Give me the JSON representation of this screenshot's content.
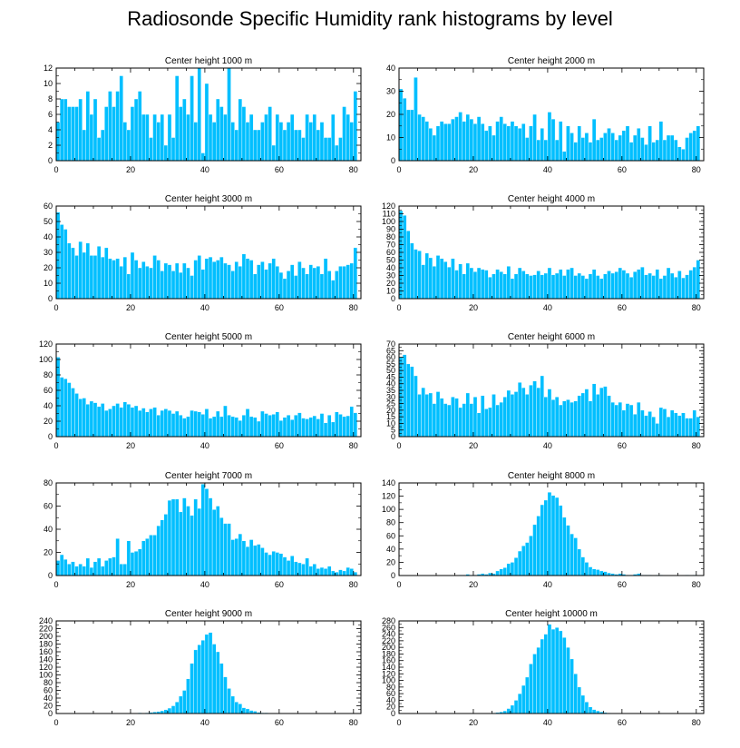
{
  "figure_title": "Radiosonde Specific Humidity rank histograms by level",
  "colors": {
    "bar": "#00bfff",
    "bar_edge": "#ffffff",
    "axis": "#000000"
  },
  "chart_data": [
    {
      "type": "bar",
      "title": "Center height 1000 m",
      "xlim": [
        0,
        82
      ],
      "ylim": [
        0,
        12
      ],
      "xticks": [
        0,
        20,
        40,
        60,
        80
      ],
      "yticks": [
        0,
        2,
        4,
        6,
        8,
        10,
        12
      ],
      "values": [
        5,
        8,
        8,
        7,
        7,
        7,
        8,
        4,
        9,
        6,
        8,
        3,
        4,
        7,
        9,
        7,
        9,
        11,
        5,
        4,
        7,
        8,
        9,
        6,
        6,
        3,
        6,
        5,
        6,
        2,
        6,
        3,
        11,
        7,
        8,
        6,
        11,
        5,
        12,
        1,
        10,
        6,
        5,
        8,
        7,
        6,
        12,
        5,
        4,
        8,
        7,
        5,
        6,
        4,
        4,
        5,
        6,
        7,
        2,
        6,
        5,
        4,
        5,
        6,
        4,
        4,
        3,
        6,
        5,
        6,
        4,
        5,
        3,
        3,
        6,
        2,
        3,
        7,
        6,
        5,
        9
      ]
    },
    {
      "type": "bar",
      "title": "Center height 2000 m",
      "xlim": [
        0,
        82
      ],
      "ylim": [
        0,
        40
      ],
      "xticks": [
        0,
        20,
        40,
        60,
        80
      ],
      "yticks": [
        0,
        10,
        20,
        30,
        40
      ],
      "values": [
        31,
        27,
        22,
        22,
        36,
        20,
        19,
        17,
        14,
        11,
        15,
        17,
        16,
        16,
        18,
        19,
        21,
        17,
        20,
        18,
        16,
        19,
        16,
        13,
        15,
        11,
        17,
        19,
        16,
        15,
        17,
        15,
        14,
        16,
        10,
        15,
        20,
        9,
        14,
        9,
        21,
        18,
        9,
        17,
        4,
        15,
        12,
        8,
        15,
        10,
        12,
        8,
        18,
        9,
        10,
        12,
        14,
        12,
        9,
        11,
        13,
        15,
        8,
        11,
        14,
        10,
        7,
        15,
        8,
        9,
        17,
        9,
        11,
        11,
        9,
        6,
        5,
        10,
        12,
        13,
        15
      ]
    },
    {
      "type": "bar",
      "title": "Center height 3000 m",
      "xlim": [
        0,
        82
      ],
      "ylim": [
        0,
        60
      ],
      "xticks": [
        0,
        20,
        40,
        60,
        80
      ],
      "yticks": [
        0,
        10,
        20,
        30,
        40,
        50,
        60
      ],
      "values": [
        56,
        48,
        45,
        36,
        33,
        28,
        37,
        30,
        36,
        28,
        28,
        34,
        27,
        33,
        26,
        25,
        26,
        21,
        27,
        16,
        30,
        25,
        20,
        24,
        21,
        20,
        28,
        25,
        18,
        23,
        22,
        18,
        23,
        17,
        23,
        20,
        15,
        25,
        28,
        19,
        26,
        27,
        24,
        25,
        27,
        23,
        22,
        18,
        24,
        21,
        29,
        26,
        25,
        16,
        22,
        24,
        19,
        23,
        26,
        21,
        17,
        13,
        18,
        22,
        15,
        24,
        20,
        16,
        22,
        20,
        21,
        16,
        26,
        18,
        12,
        18,
        21,
        21,
        22,
        23,
        33
      ]
    },
    {
      "type": "bar",
      "title": "Center height 4000 m",
      "xlim": [
        0,
        82
      ],
      "ylim": [
        0,
        120
      ],
      "xticks": [
        0,
        20,
        40,
        60,
        80
      ],
      "yticks": [
        0,
        10,
        20,
        30,
        40,
        50,
        60,
        70,
        80,
        90,
        100,
        110,
        120
      ],
      "values": [
        114,
        108,
        88,
        72,
        64,
        62,
        44,
        59,
        53,
        42,
        56,
        52,
        48,
        41,
        52,
        37,
        45,
        32,
        46,
        40,
        35,
        40,
        38,
        37,
        28,
        32,
        38,
        35,
        32,
        42,
        26,
        32,
        40,
        36,
        32,
        30,
        31,
        36,
        31,
        33,
        40,
        31,
        33,
        38,
        30,
        38,
        40,
        30,
        33,
        30,
        26,
        32,
        38,
        30,
        26,
        32,
        36,
        33,
        35,
        40,
        37,
        33,
        28,
        35,
        38,
        41,
        31,
        33,
        30,
        38,
        26,
        30,
        40,
        33,
        28,
        36,
        27,
        31,
        37,
        41,
        50
      ]
    },
    {
      "type": "bar",
      "title": "Center height 5000 m",
      "xlim": [
        0,
        82
      ],
      "ylim": [
        0,
        120
      ],
      "xticks": [
        0,
        20,
        40,
        60,
        80
      ],
      "yticks": [
        0,
        20,
        40,
        60,
        80,
        100,
        120
      ],
      "values": [
        103,
        77,
        75,
        70,
        63,
        56,
        49,
        50,
        42,
        46,
        44,
        39,
        43,
        34,
        36,
        40,
        43,
        38,
        45,
        42,
        38,
        40,
        34,
        37,
        32,
        36,
        38,
        28,
        34,
        36,
        34,
        30,
        33,
        28,
        24,
        26,
        34,
        33,
        32,
        29,
        36,
        24,
        26,
        33,
        26,
        40,
        28,
        26,
        25,
        21,
        28,
        36,
        26,
        25,
        20,
        33,
        30,
        28,
        29,
        32,
        21,
        25,
        28,
        22,
        28,
        31,
        24,
        23,
        25,
        27,
        23,
        30,
        18,
        28,
        19,
        32,
        29,
        26,
        27,
        39,
        31
      ]
    },
    {
      "type": "bar",
      "title": "Center height 6000 m",
      "xlim": [
        0,
        82
      ],
      "ylim": [
        0,
        70
      ],
      "xticks": [
        0,
        20,
        40,
        60,
        80
      ],
      "yticks": [
        0,
        5,
        10,
        15,
        20,
        25,
        30,
        35,
        40,
        45,
        50,
        55,
        60,
        65,
        70
      ],
      "values": [
        60,
        62,
        55,
        53,
        46,
        32,
        37,
        32,
        33,
        25,
        34,
        29,
        25,
        24,
        30,
        29,
        22,
        25,
        33,
        25,
        30,
        18,
        31,
        21,
        22,
        32,
        24,
        26,
        30,
        35,
        32,
        34,
        41,
        37,
        32,
        39,
        42,
        37,
        46,
        30,
        36,
        28,
        30,
        24,
        27,
        28,
        26,
        27,
        31,
        33,
        36,
        27,
        40,
        32,
        37,
        38,
        31,
        26,
        24,
        26,
        20,
        25,
        24,
        17,
        26,
        20,
        16,
        19,
        15,
        10,
        22,
        21,
        15,
        20,
        18,
        16,
        18,
        14,
        14,
        20,
        15
      ]
    },
    {
      "type": "bar",
      "title": "Center height 7000 m",
      "xlim": [
        0,
        82
      ],
      "ylim": [
        0,
        80
      ],
      "xticks": [
        0,
        20,
        40,
        60,
        80
      ],
      "yticks": [
        0,
        20,
        40,
        60,
        80
      ],
      "values": [
        13,
        18,
        14,
        10,
        12,
        8,
        10,
        8,
        15,
        7,
        12,
        15,
        8,
        13,
        15,
        16,
        32,
        10,
        10,
        30,
        20,
        21,
        23,
        30,
        32,
        35,
        35,
        43,
        48,
        53,
        65,
        66,
        66,
        55,
        67,
        60,
        52,
        66,
        58,
        79,
        75,
        67,
        57,
        60,
        50,
        45,
        45,
        31,
        32,
        36,
        30,
        25,
        31,
        26,
        27,
        24,
        20,
        18,
        21,
        20,
        19,
        16,
        13,
        17,
        12,
        11,
        10,
        15,
        8,
        10,
        6,
        7,
        6,
        8,
        4,
        3,
        5,
        4,
        7,
        6,
        3
      ]
    },
    {
      "type": "bar",
      "title": "Center height 8000 m",
      "xlim": [
        0,
        82
      ],
      "ylim": [
        0,
        140
      ],
      "xticks": [
        0,
        20,
        40,
        60,
        80
      ],
      "yticks": [
        0,
        20,
        40,
        60,
        80,
        100,
        120,
        140
      ],
      "values": [
        0,
        0,
        0,
        0,
        0,
        0,
        0,
        0,
        0,
        0,
        0,
        0,
        0,
        0,
        0,
        0,
        1,
        1,
        2,
        1,
        1,
        2,
        3,
        2,
        4,
        3,
        7,
        10,
        12,
        18,
        20,
        27,
        37,
        45,
        50,
        60,
        77,
        90,
        107,
        114,
        126,
        121,
        118,
        106,
        88,
        76,
        63,
        57,
        40,
        28,
        20,
        13,
        10,
        9,
        7,
        6,
        4,
        3,
        2,
        3,
        2,
        1,
        1,
        2,
        3,
        1,
        1,
        1,
        0,
        1,
        1,
        0,
        0,
        0,
        0,
        0,
        0,
        1,
        0,
        1,
        0
      ]
    },
    {
      "type": "bar",
      "title": "Center height 9000 m",
      "xlim": [
        0,
        82
      ],
      "ylim": [
        0,
        240
      ],
      "xticks": [
        0,
        20,
        40,
        60,
        80
      ],
      "yticks": [
        0,
        20,
        40,
        60,
        80,
        100,
        120,
        140,
        160,
        180,
        200,
        220,
        240
      ],
      "values": [
        0,
        0,
        0,
        0,
        0,
        0,
        0,
        0,
        0,
        0,
        0,
        0,
        0,
        0,
        0,
        0,
        0,
        0,
        0,
        0,
        0,
        0,
        2,
        1,
        2,
        3,
        4,
        5,
        7,
        10,
        14,
        20,
        30,
        45,
        60,
        90,
        130,
        165,
        178,
        190,
        205,
        210,
        180,
        160,
        130,
        95,
        65,
        45,
        30,
        25,
        15,
        12,
        8,
        6,
        3,
        2,
        2,
        1,
        1,
        0,
        0,
        0,
        0,
        0,
        0,
        0,
        0,
        0,
        0,
        0,
        0,
        0,
        0,
        0,
        0,
        0,
        0,
        0,
        0,
        0,
        0
      ]
    },
    {
      "type": "bar",
      "title": "Center height 10000 m",
      "xlim": [
        0,
        82
      ],
      "ylim": [
        0,
        280
      ],
      "xticks": [
        0,
        20,
        40,
        60,
        80
      ],
      "yticks": [
        0,
        20,
        40,
        60,
        80,
        100,
        120,
        140,
        160,
        180,
        200,
        220,
        240,
        260,
        280
      ],
      "values": [
        0,
        0,
        0,
        0,
        0,
        0,
        0,
        0,
        0,
        0,
        0,
        0,
        0,
        0,
        0,
        0,
        0,
        0,
        0,
        0,
        0,
        0,
        0,
        0,
        1,
        2,
        3,
        5,
        8,
        15,
        25,
        40,
        60,
        85,
        110,
        150,
        180,
        200,
        225,
        240,
        270,
        255,
        260,
        250,
        230,
        200,
        165,
        120,
        80,
        55,
        35,
        20,
        12,
        8,
        5,
        3,
        2,
        1,
        1,
        1,
        0,
        0,
        0,
        0,
        0,
        0,
        0,
        0,
        0,
        0,
        0,
        0,
        0,
        0,
        0,
        0,
        0,
        0,
        0,
        0,
        0
      ]
    }
  ]
}
